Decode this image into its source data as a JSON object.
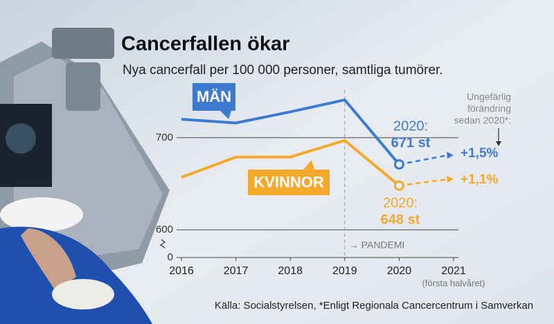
{
  "chart_data": {
    "type": "line",
    "title": "Cancerfallen ökar",
    "subtitle": "Nya cancerfall per 100 000 personer, samtliga tumörer.",
    "x": [
      2016,
      2017,
      2018,
      2019,
      2020
    ],
    "xlim": [
      2016,
      2021
    ],
    "xticks": [
      2016,
      2017,
      2018,
      2019,
      2020,
      2021
    ],
    "ylim": [
      0,
      760
    ],
    "ybreak": [
      0,
      600
    ],
    "yticks": [
      0,
      600,
      700
    ],
    "grid": true,
    "series": [
      {
        "name": "MÄN",
        "color": "#3d7bd0",
        "values": [
          720,
          716,
          728,
          741,
          671
        ],
        "value_labels": [
          null,
          null,
          null,
          null,
          "671 st"
        ],
        "end_prefix": "2020:",
        "projection": {
          "x": [
            2020,
            2021
          ],
          "values": [
            671,
            681
          ]
        },
        "change_label": "+1,5%"
      },
      {
        "name": "KVINNOR",
        "color": "#f4a92a",
        "values": [
          657,
          679,
          679,
          697,
          648
        ],
        "value_labels": [
          null,
          null,
          null,
          null,
          "648 st"
        ],
        "end_prefix": "2020:",
        "projection": {
          "x": [
            2020,
            2021
          ],
          "values": [
            648,
            655
          ]
        },
        "change_label": "+1,1%"
      }
    ],
    "event": {
      "x": 2019,
      "label": "→ PANDEMI"
    },
    "x_note": "(första halvåret)",
    "change_note": [
      "Ungefärlig",
      "förändring",
      "sedan 2020*:"
    ],
    "source": "Källa: Socialstyrelsen, *Enligt Regionala Cancercentrum i Samverkan"
  }
}
